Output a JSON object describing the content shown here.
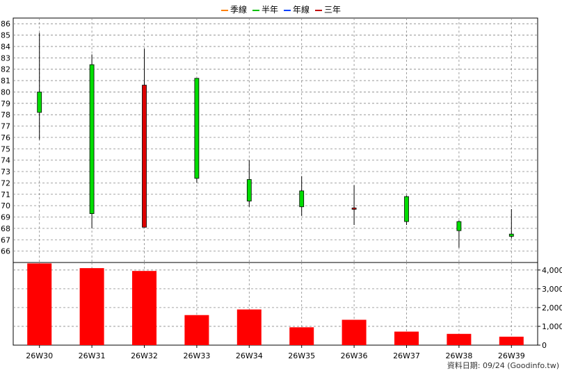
{
  "legend": [
    {
      "label": "季線",
      "color": "#ff8000"
    },
    {
      "label": "半年",
      "color": "#00c000"
    },
    {
      "label": "年線",
      "color": "#0040ff"
    },
    {
      "label": "三年",
      "color": "#c00000"
    }
  ],
  "footer": "資料日期: 09/24  (Goodinfo.tw)",
  "colors": {
    "up": "#00dd00",
    "down": "#dd0000",
    "volume": "#ff0000",
    "grid": "#888888",
    "wick": "#000000"
  },
  "chart_data": [
    {
      "type": "candlestick",
      "categories": [
        "26W30",
        "26W31",
        "26W32",
        "26W33",
        "26W34",
        "26W35",
        "26W36",
        "26W37",
        "26W38",
        "26W39"
      ],
      "open": [
        78.2,
        69.3,
        80.6,
        72.4,
        70.4,
        69.9,
        69.8,
        68.6,
        67.8,
        67.3
      ],
      "close": [
        80.0,
        82.4,
        68.1,
        81.2,
        72.3,
        71.3,
        69.7,
        70.8,
        68.6,
        67.5
      ],
      "high": [
        85.2,
        83.3,
        83.8,
        81.2,
        74.0,
        72.6,
        71.8,
        70.9,
        68.7,
        69.7
      ],
      "low": [
        75.8,
        68.0,
        68.1,
        72.0,
        69.9,
        69.1,
        68.3,
        68.3,
        66.3,
        67.1
      ],
      "ylim": [
        65,
        86.5
      ],
      "yticks": [
        66,
        67,
        68,
        69,
        70,
        71,
        72,
        73,
        74,
        75,
        76,
        77,
        78,
        79,
        80,
        81,
        82,
        83,
        84,
        85,
        86
      ],
      "grid": true,
      "legend_position": "top"
    },
    {
      "type": "bar",
      "categories": [
        "26W30",
        "26W31",
        "26W32",
        "26W33",
        "26W34",
        "26W35",
        "26W36",
        "26W37",
        "26W38",
        "26W39"
      ],
      "values": [
        4350,
        4100,
        3950,
        1600,
        1900,
        950,
        1350,
        720,
        600,
        450
      ],
      "ylim": [
        0,
        4400
      ],
      "yticks": [
        0,
        1000,
        2000,
        3000,
        4000
      ],
      "ytick_labels": [
        "0",
        "1,000",
        "2,000",
        "3,000",
        "4,000"
      ],
      "grid": true
    }
  ]
}
